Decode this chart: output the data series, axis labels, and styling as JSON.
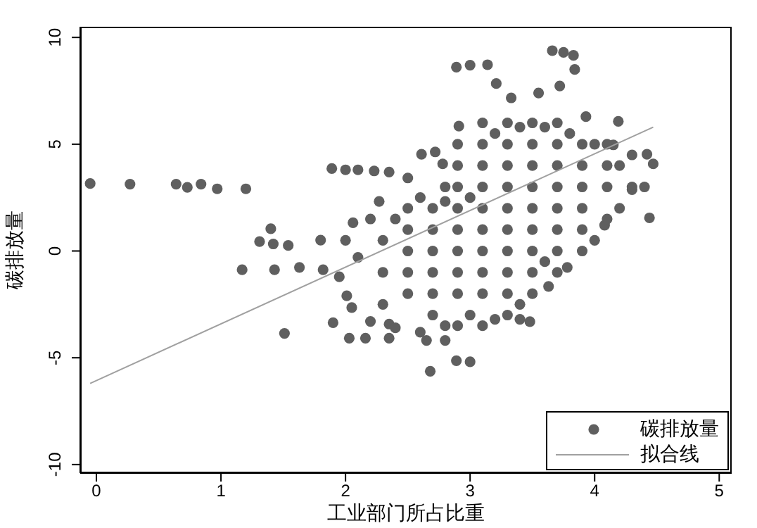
{
  "chart_data": {
    "type": "scatter",
    "xlabel": "工业部门所占比重",
    "ylabel": "碳排放量",
    "xlim": [
      -0.13,
      5.1
    ],
    "ylim": [
      -10.4,
      10.5
    ],
    "xticks": [
      0,
      1,
      2,
      3,
      4,
      5
    ],
    "yticks": [
      -10,
      -5,
      0,
      5,
      10
    ],
    "grid": false,
    "legend": "bottom right",
    "marker": "circle",
    "series": [
      {
        "name": "碳排放量",
        "type": "scatter",
        "color": "#5f5f5f",
        "x": [
          -0.05,
          0.27,
          0.64,
          0.73,
          0.84,
          0.97,
          1.2,
          1.31,
          1.4,
          1.42,
          1.17,
          1.43,
          1.51,
          1.63,
          1.54,
          1.8,
          1.9,
          2.06,
          1.89,
          2.0,
          2.1,
          2.23,
          2.35,
          2.5,
          2.89,
          3.0,
          3.14,
          3.21,
          3.66,
          3.75,
          3.83,
          3.84,
          3.72,
          3.55,
          3.33,
          2.91,
          3.93,
          4.19,
          4.15,
          4.47,
          4.42,
          4.3,
          4.44,
          4.08,
          3.78,
          3.63,
          3.48,
          3.4,
          3.0,
          2.89,
          2.68,
          2.8,
          2.65,
          2.35,
          2.03,
          2.16,
          2.35,
          2.05,
          2.01,
          1.95,
          1.82,
          2.27,
          2.61,
          2.72,
          2.78,
          2.8,
          2.3,
          2.3,
          2.3,
          2.5,
          2.5,
          2.5,
          2.5,
          2.5,
          2.7,
          2.7,
          2.7,
          2.7,
          2.7,
          2.7,
          2.9,
          2.9,
          2.9,
          2.9,
          2.9,
          2.9,
          2.9,
          2.9,
          2.9,
          3.1,
          3.1,
          3.1,
          3.1,
          3.1,
          3.1,
          3.1,
          3.1,
          3.1,
          3.1,
          3.3,
          3.3,
          3.3,
          3.3,
          3.3,
          3.3,
          3.3,
          3.3,
          3.3,
          3.3,
          3.5,
          3.5,
          3.5,
          3.5,
          3.5,
          3.5,
          3.5,
          3.5,
          3.5,
          3.7,
          3.7,
          3.7,
          3.7,
          3.7,
          3.7,
          3.7,
          3.7,
          3.9,
          3.9,
          3.9,
          3.9,
          3.9,
          3.9,
          4.1,
          4.1,
          4.1,
          4.1,
          4.3,
          4.3,
          4.2,
          4.0,
          3.6,
          3.4,
          3.2,
          3.0,
          2.8,
          2.6,
          2.4,
          2.2,
          2.1,
          2.0,
          2.2,
          2.4,
          2.6,
          2.8,
          3.0,
          3.2,
          3.4,
          3.6,
          3.8,
          4.0,
          4.2,
          4.4
        ],
        "values": [
          3.16,
          3.13,
          3.13,
          2.98,
          3.13,
          2.91,
          2.91,
          0.44,
          1.04,
          0.33,
          -0.88,
          -0.88,
          -3.86,
          -0.77,
          0.26,
          0.51,
          -3.36,
          1.32,
          3.86,
          3.8,
          3.8,
          3.75,
          3.7,
          3.42,
          8.61,
          8.7,
          8.72,
          7.84,
          9.38,
          9.3,
          9.16,
          8.5,
          7.73,
          7.4,
          7.17,
          5.85,
          6.29,
          6.07,
          4.97,
          4.08,
          4.53,
          2.87,
          1.55,
          1.21,
          -0.77,
          -1.66,
          -3.31,
          -3.2,
          -5.19,
          -5.14,
          -5.63,
          -4.19,
          -4.19,
          -4.08,
          -4.08,
          -4.08,
          -3.42,
          -2.65,
          -2.1,
          -1.21,
          -0.88,
          2.32,
          4.53,
          4.64,
          4.08,
          2.32,
          -2.5,
          -1,
          0.5,
          -2,
          -1,
          0,
          1,
          2,
          -3,
          -2,
          -1,
          0,
          1,
          2,
          -3.5,
          -2,
          -1,
          0,
          1,
          2,
          3,
          4,
          5,
          -3.5,
          -2,
          -1,
          0,
          1,
          2,
          3,
          4,
          5,
          6,
          -3,
          -2,
          -1,
          0,
          1,
          2,
          3,
          4,
          5,
          6,
          -2,
          -1,
          0,
          1,
          2,
          3,
          4,
          5,
          6,
          -1,
          0,
          1,
          2,
          3,
          4,
          5,
          6,
          0,
          1,
          2,
          3,
          4,
          5,
          1.5,
          3,
          4,
          5,
          3,
          4.5,
          2,
          0.5,
          -0.5,
          -2.5,
          -3.2,
          -3,
          -3.5,
          -3.8,
          -3.6,
          -3.3,
          -0.3,
          0.5,
          1.5,
          1.5,
          2.5,
          3,
          2.5,
          5.5,
          5.8,
          5.8,
          5.5,
          5,
          4,
          3
        ]
      },
      {
        "name": "拟合线",
        "type": "line",
        "color": "#a0a0a0",
        "x": [
          -0.05,
          4.47
        ],
        "values": [
          -6.2,
          5.8
        ],
        "marker": "none"
      }
    ]
  }
}
